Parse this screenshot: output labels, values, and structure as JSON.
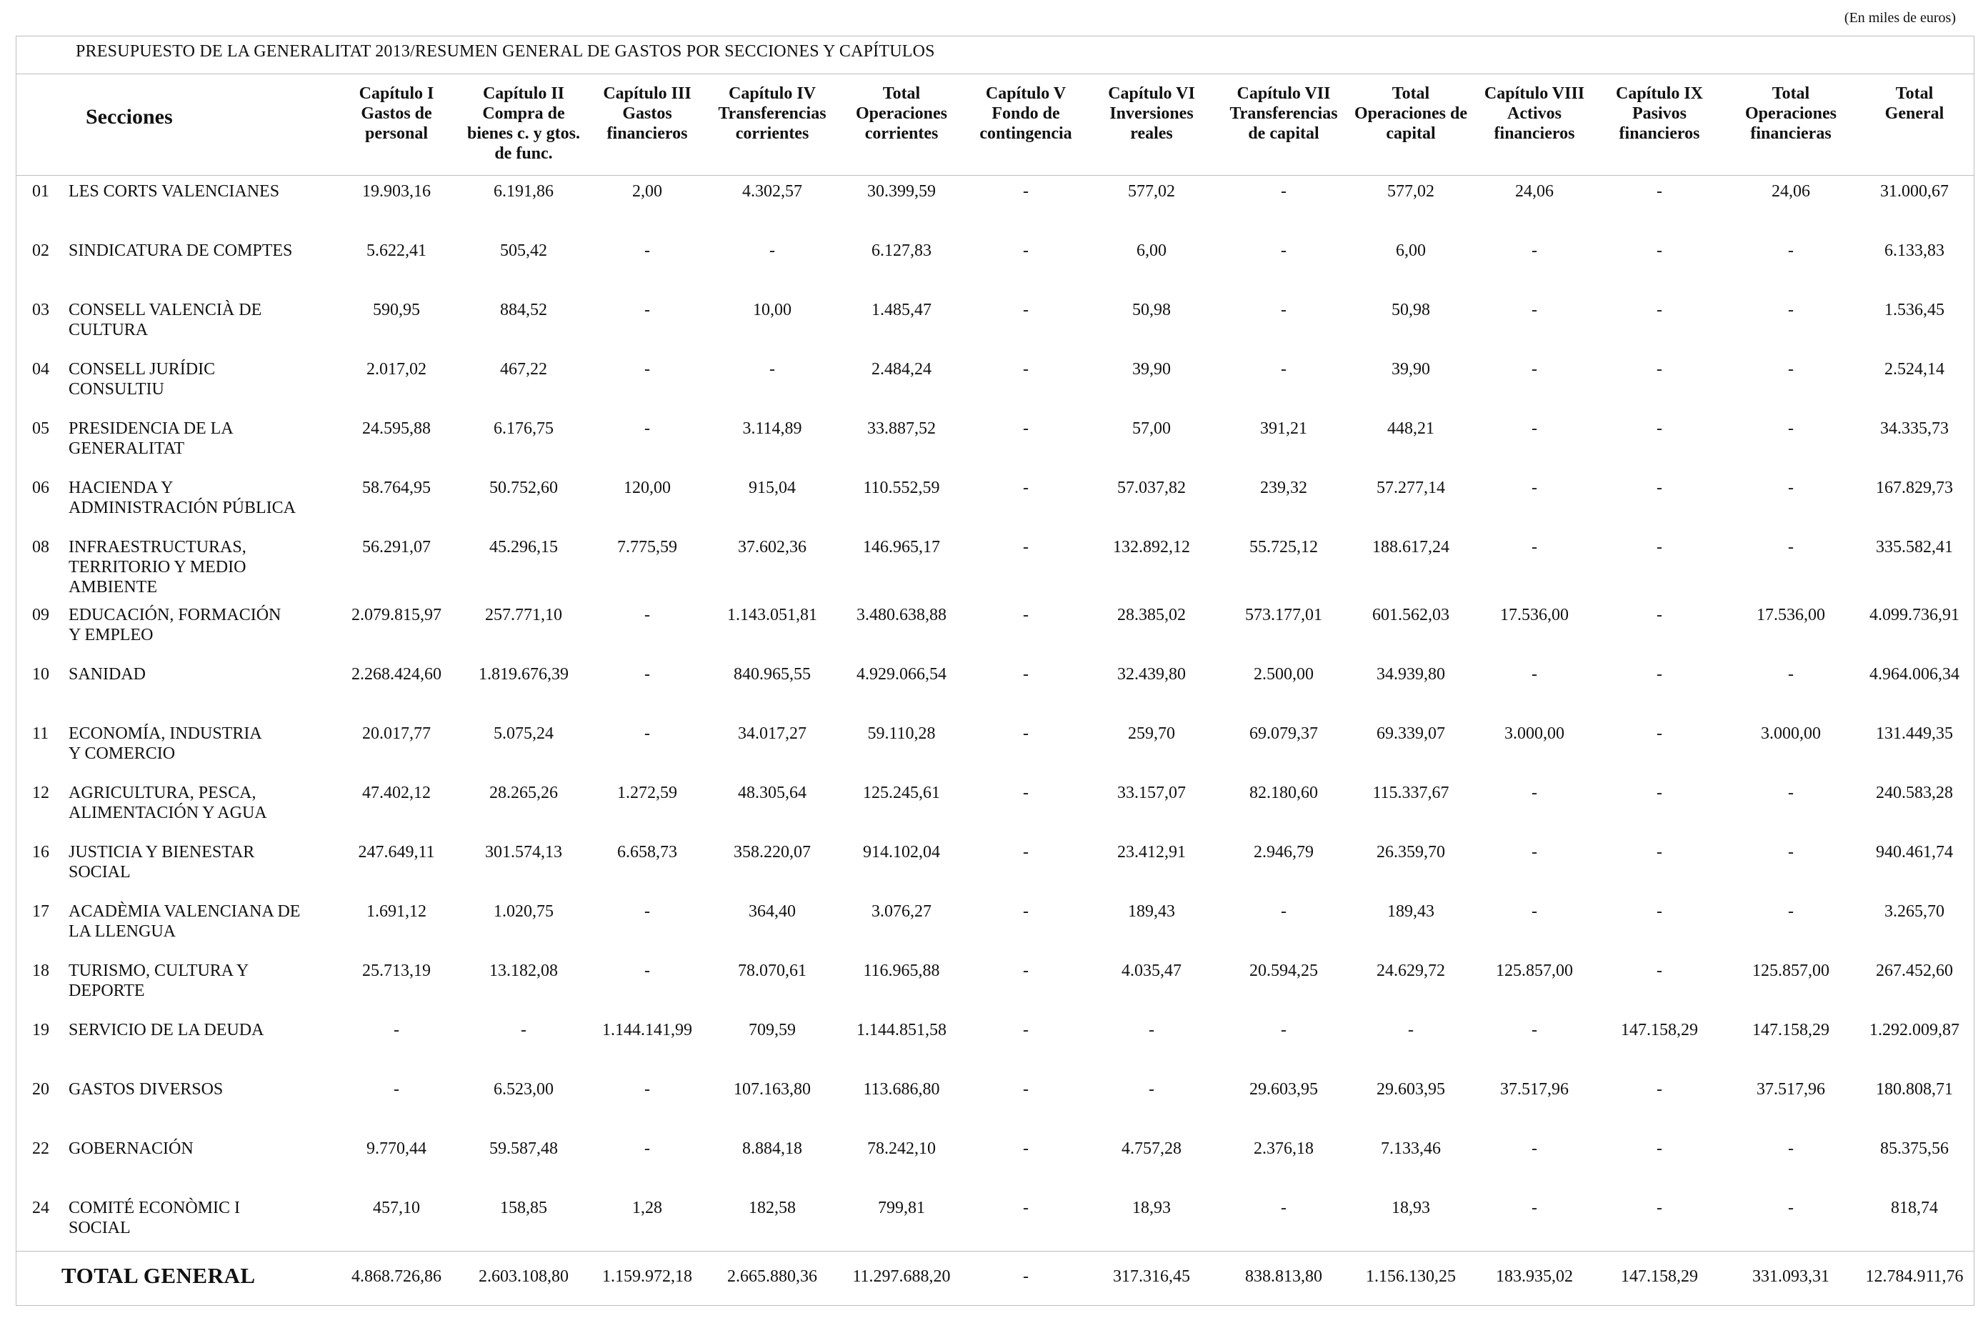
{
  "unit_note": "(En miles de euros)",
  "title": "PRESUPUESTO DE LA GENERALITAT 2013/RESUMEN GENERAL DE GASTOS POR SECCIONES Y CAPÍTULOS",
  "sections_header": "Secciones",
  "columns": [
    "Capítulo I\nGastos de\npersonal",
    "Capítulo II\nCompra de\nbienes c. y gtos.\nde func.",
    "Capítulo III\nGastos\nfinancieros",
    "Capítulo IV\nTransferencias\ncorrientes",
    "Total\nOperaciones\ncorrientes",
    "Capítulo V\nFondo de\ncontingencia",
    "Capítulo VI\nInversiones\nreales",
    "Capítulo VII\nTransferencias\nde capital",
    "Total\nOperaciones de\ncapital",
    "Capítulo VIII\nActivos\nfinancieros",
    "Capítulo IX\nPasivos\nfinancieros",
    "Total\nOperaciones\nfinancieras",
    "Total General"
  ],
  "rows": [
    {
      "code": "01",
      "name": "LES CORTS VALENCIANES",
      "values": [
        "19.903,16",
        "6.191,86",
        "2,00",
        "4.302,57",
        "30.399,59",
        "-",
        "577,02",
        "-",
        "577,02",
        "24,06",
        "-",
        "24,06",
        "31.000,67"
      ]
    },
    {
      "code": "02",
      "name": "SINDICATURA DE COMPTES",
      "values": [
        "5.622,41",
        "505,42",
        "-",
        "-",
        "6.127,83",
        "-",
        "6,00",
        "-",
        "6,00",
        "-",
        "-",
        "-",
        "6.133,83"
      ]
    },
    {
      "code": "03",
      "name": "CONSELL VALENCIÀ DE\nCULTURA",
      "values": [
        "590,95",
        "884,52",
        "-",
        "10,00",
        "1.485,47",
        "-",
        "50,98",
        "-",
        "50,98",
        "-",
        "-",
        "-",
        "1.536,45"
      ]
    },
    {
      "code": "04",
      "name": "CONSELL JURÍDIC\nCONSULTIU",
      "values": [
        "2.017,02",
        "467,22",
        "-",
        "-",
        "2.484,24",
        "-",
        "39,90",
        "-",
        "39,90",
        "-",
        "-",
        "-",
        "2.524,14"
      ]
    },
    {
      "code": "05",
      "name": "PRESIDENCIA DE LA\nGENERALITAT",
      "values": [
        "24.595,88",
        "6.176,75",
        "-",
        "3.114,89",
        "33.887,52",
        "-",
        "57,00",
        "391,21",
        "448,21",
        "-",
        "-",
        "-",
        "34.335,73"
      ]
    },
    {
      "code": "06",
      "name": "HACIENDA Y\nADMINISTRACIÓN PÚBLICA",
      "values": [
        "58.764,95",
        "50.752,60",
        "120,00",
        "915,04",
        "110.552,59",
        "-",
        "57.037,82",
        "239,32",
        "57.277,14",
        "-",
        "-",
        "-",
        "167.829,73"
      ]
    },
    {
      "code": "08",
      "name": "INFRAESTRUCTURAS,\nTERRITORIO Y MEDIO\nAMBIENTE",
      "values": [
        "56.291,07",
        "45.296,15",
        "7.775,59",
        "37.602,36",
        "146.965,17",
        "-",
        "132.892,12",
        "55.725,12",
        "188.617,24",
        "-",
        "-",
        "-",
        "335.582,41"
      ]
    },
    {
      "code": "09",
      "name": "EDUCACIÓN, FORMACIÓN\nY EMPLEO",
      "values": [
        "2.079.815,97",
        "257.771,10",
        "-",
        "1.143.051,81",
        "3.480.638,88",
        "-",
        "28.385,02",
        "573.177,01",
        "601.562,03",
        "17.536,00",
        "-",
        "17.536,00",
        "4.099.736,91"
      ]
    },
    {
      "code": "10",
      "name": "SANIDAD",
      "values": [
        "2.268.424,60",
        "1.819.676,39",
        "-",
        "840.965,55",
        "4.929.066,54",
        "-",
        "32.439,80",
        "2.500,00",
        "34.939,80",
        "-",
        "-",
        "-",
        "4.964.006,34"
      ]
    },
    {
      "code": "11",
      "name": "ECONOMÍA, INDUSTRIA\nY COMERCIO",
      "values": [
        "20.017,77",
        "5.075,24",
        "-",
        "34.017,27",
        "59.110,28",
        "-",
        "259,70",
        "69.079,37",
        "69.339,07",
        "3.000,00",
        "-",
        "3.000,00",
        "131.449,35"
      ]
    },
    {
      "code": "12",
      "name": "AGRICULTURA, PESCA,\nALIMENTACIÓN Y AGUA",
      "values": [
        "47.402,12",
        "28.265,26",
        "1.272,59",
        "48.305,64",
        "125.245,61",
        "-",
        "33.157,07",
        "82.180,60",
        "115.337,67",
        "-",
        "-",
        "-",
        "240.583,28"
      ]
    },
    {
      "code": "16",
      "name": "JUSTICIA Y BIENESTAR\nSOCIAL",
      "values": [
        "247.649,11",
        "301.574,13",
        "6.658,73",
        "358.220,07",
        "914.102,04",
        "-",
        "23.412,91",
        "2.946,79",
        "26.359,70",
        "-",
        "-",
        "-",
        "940.461,74"
      ]
    },
    {
      "code": "17",
      "name": "ACADÈMIA VALENCIANA DE\nLA LLENGUA",
      "values": [
        "1.691,12",
        "1.020,75",
        "-",
        "364,40",
        "3.076,27",
        "-",
        "189,43",
        "-",
        "189,43",
        "-",
        "-",
        "-",
        "3.265,70"
      ]
    },
    {
      "code": "18",
      "name": "TURISMO, CULTURA Y\nDEPORTE",
      "values": [
        "25.713,19",
        "13.182,08",
        "-",
        "78.070,61",
        "116.965,88",
        "-",
        "4.035,47",
        "20.594,25",
        "24.629,72",
        "125.857,00",
        "-",
        "125.857,00",
        "267.452,60"
      ]
    },
    {
      "code": "19",
      "name": "SERVICIO DE LA DEUDA",
      "values": [
        "-",
        "-",
        "1.144.141,99",
        "709,59",
        "1.144.851,58",
        "-",
        "-",
        "-",
        "-",
        "-",
        "147.158,29",
        "147.158,29",
        "1.292.009,87"
      ]
    },
    {
      "code": "20",
      "name": "GASTOS DIVERSOS",
      "values": [
        "-",
        "6.523,00",
        "-",
        "107.163,80",
        "113.686,80",
        "-",
        "-",
        "29.603,95",
        "29.603,95",
        "37.517,96",
        "-",
        "37.517,96",
        "180.808,71"
      ]
    },
    {
      "code": "22",
      "name": "GOBERNACIÓN",
      "values": [
        "9.770,44",
        "59.587,48",
        "-",
        "8.884,18",
        "78.242,10",
        "-",
        "4.757,28",
        "2.376,18",
        "7.133,46",
        "-",
        "-",
        "-",
        "85.375,56"
      ]
    },
    {
      "code": "24",
      "name": "COMITÉ ECONÒMIC I\nSOCIAL",
      "values": [
        "457,10",
        "158,85",
        "1,28",
        "182,58",
        "799,81",
        "-",
        "18,93",
        "-",
        "18,93",
        "-",
        "-",
        "-",
        "818,74"
      ]
    }
  ],
  "total": {
    "label": "TOTAL GENERAL",
    "values": [
      "4.868.726,86",
      "2.603.108,80",
      "1.159.972,18",
      "2.665.880,36",
      "11.297.688,20",
      "-",
      "317.316,45",
      "838.813,80",
      "1.156.130,25",
      "183.935,02",
      "147.158,29",
      "331.093,31",
      "12.784.911,76"
    ]
  }
}
